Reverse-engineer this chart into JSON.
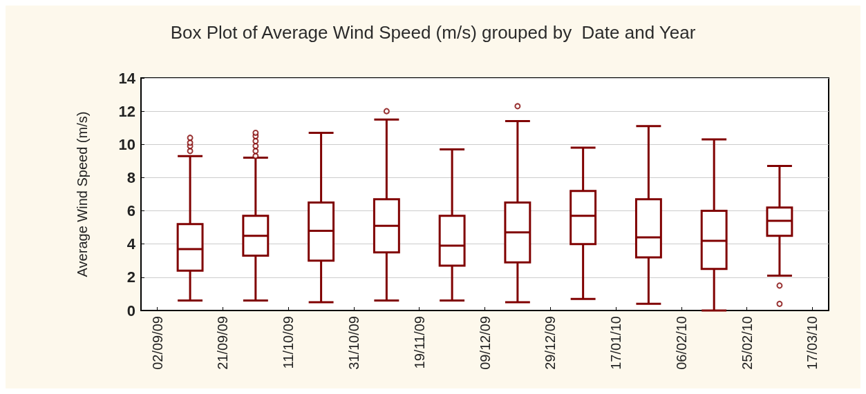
{
  "chart_data": {
    "type": "box",
    "title": "Box Plot of Average Wind Speed (m/s) grouped by  Date and Year",
    "ylabel": "Average Wind Speed (m/s)",
    "categories": [
      "02/09/09",
      null,
      "21/09/09",
      null,
      "11/10/09",
      null,
      "31/10/09",
      null,
      "19/11/09",
      null,
      "09/12/09",
      null,
      "29/12/09",
      null,
      "17/01/10",
      null,
      "06/02/10",
      null,
      "25/02/10",
      null,
      "17/03/10"
    ],
    "color": "#800000",
    "ylim": [
      0,
      14
    ],
    "yticks": [
      0,
      2,
      4,
      6,
      8,
      10,
      12,
      14
    ],
    "grid": "y",
    "boxes": [
      null,
      {
        "low": 0.6,
        "q1": 2.4,
        "median": 3.7,
        "q3": 5.2,
        "high": 9.3,
        "outliers": [
          9.6,
          9.9,
          10.1,
          10.4
        ]
      },
      null,
      {
        "low": 0.6,
        "q1": 3.3,
        "median": 4.5,
        "q3": 5.7,
        "high": 9.2,
        "outliers": [
          9.3,
          9.6,
          9.9,
          10.2,
          10.5,
          10.7
        ]
      },
      null,
      {
        "low": 0.5,
        "q1": 3.0,
        "median": 4.8,
        "q3": 6.5,
        "high": 10.7
      },
      null,
      {
        "low": 0.6,
        "q1": 3.5,
        "median": 5.1,
        "q3": 6.7,
        "high": 11.5,
        "outliers": [
          12.0
        ]
      },
      null,
      {
        "low": 0.6,
        "q1": 2.7,
        "median": 3.9,
        "q3": 5.7,
        "high": 9.7
      },
      null,
      {
        "low": 0.5,
        "q1": 2.9,
        "median": 4.7,
        "q3": 6.5,
        "high": 11.4,
        "outliers": [
          12.3
        ]
      },
      null,
      {
        "low": 0.7,
        "q1": 4.0,
        "median": 5.7,
        "q3": 7.2,
        "high": 9.8
      },
      null,
      {
        "low": 0.4,
        "q1": 3.2,
        "median": 4.4,
        "q3": 6.7,
        "high": 11.1
      },
      null,
      {
        "low": 0.0,
        "q1": 2.5,
        "median": 4.2,
        "q3": 6.0,
        "high": 10.3
      },
      null,
      {
        "low": 2.1,
        "q1": 4.5,
        "median": 5.4,
        "q3": 6.2,
        "high": 8.7,
        "outliers": [
          1.5,
          0.4
        ]
      },
      null
    ]
  }
}
